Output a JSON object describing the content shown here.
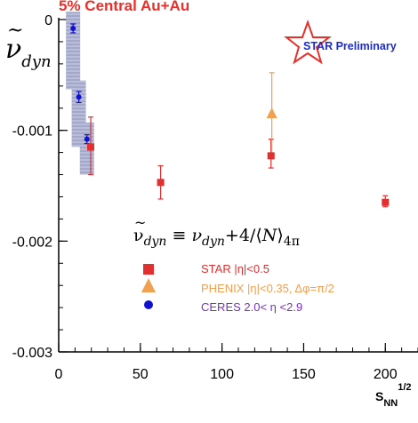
{
  "header": {
    "title": "5% Central Au+Au",
    "title_color": "#e8302a"
  },
  "logo": {
    "text": "STAR Preliminary",
    "text_color": "#1a2bd6",
    "star_color": "#e8302a"
  },
  "formula_text": "ν̃dyn ≡ νdyn+4/⟨N⟩4π",
  "chart_data": {
    "type": "scatter",
    "title": "5% Central Au+Au",
    "ylabel": "ν̃dyn",
    "xlabel": "SNN1/2",
    "xlim": [
      0,
      220
    ],
    "ylim": [
      -0.003,
      0
    ],
    "xticks": [
      0,
      50,
      100,
      150,
      200
    ],
    "xtick_labels": [
      "0",
      "50",
      "100",
      "150",
      "200"
    ],
    "yticks": [
      0,
      -0.001,
      -0.002,
      -0.003
    ],
    "ytick_labels": [
      "0",
      "-0.001",
      "-0.002",
      "-0.003"
    ],
    "grid": false,
    "legend_position": "lower-center",
    "series": [
      {
        "name": "STAR |η|<0.5",
        "marker": "square",
        "color": "#e03030",
        "points": [
          {
            "x": 19.6,
            "y": -0.00115,
            "err_lo": 0.00025,
            "err_hi": 0.00027
          },
          {
            "x": 62.4,
            "y": -0.00147,
            "err_lo": 0.00015,
            "err_hi": 0.00015
          },
          {
            "x": 130,
            "y": -0.00123,
            "err_lo": 0.00011,
            "err_hi": 0.00015
          },
          {
            "x": 200,
            "y": -0.00165,
            "err_lo": 4e-05,
            "err_hi": 6e-05
          }
        ]
      },
      {
        "name": "PHENIX |η|<0.35, Δφ=π/2",
        "marker": "triangle",
        "color": "#f0a050",
        "points": [
          {
            "x": 130.5,
            "y": -0.00085,
            "err_lo": 0.00037,
            "err_hi": 0.00037
          }
        ]
      },
      {
        "name": "CERES 2.0< η <2.9",
        "marker": "circle",
        "color": "#1010d0",
        "points": [
          {
            "x": 8.8,
            "y": -8e-05,
            "err_lo": 4e-05,
            "err_hi": 4e-05,
            "sys_lo": 0.00055,
            "sys_hi": 0.00015
          },
          {
            "x": 12.3,
            "y": -0.0007,
            "err_lo": 5e-05,
            "err_hi": 5e-05,
            "sys_lo": 0.00045,
            "sys_hi": 0.00015
          },
          {
            "x": 17.3,
            "y": -0.00108,
            "err_lo": 4e-05,
            "err_hi": 4e-05,
            "sys_lo": 0.00032,
            "sys_hi": 0.00015
          }
        ]
      }
    ],
    "legend_text_colors": [
      "#e03030",
      "#f0a050",
      "#7a30c8"
    ]
  }
}
